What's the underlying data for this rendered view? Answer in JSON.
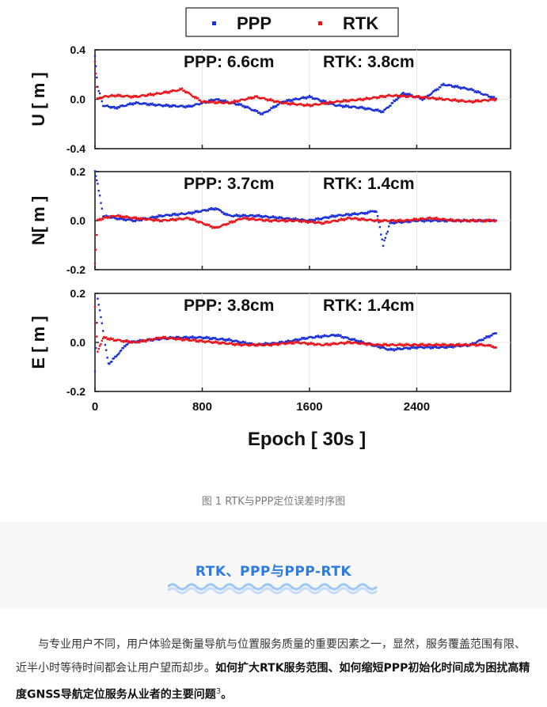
{
  "figure": {
    "legend": [
      {
        "label": "PPP",
        "color": "#1a2fd6"
      },
      {
        "label": "RTK",
        "color": "#e8141c"
      }
    ]
  },
  "chart_data": [
    {
      "type": "scatter",
      "ylabel": "U [ m ]",
      "ylim": [
        -0.4,
        0.4
      ],
      "yticks": [
        "0.4",
        "0.0",
        "-0.4"
      ],
      "annotation_ppp": "PPP: 6.6cm",
      "annotation_rtk": "RTK: 3.8cm",
      "series": [
        {
          "name": "PPP",
          "x": [
            0,
            20,
            60,
            150,
            300,
            500,
            700,
            900,
            1100,
            1250,
            1400,
            1600,
            1800,
            2000,
            2150,
            2300,
            2450,
            2600,
            2800,
            3000
          ],
          "y": [
            0.35,
            0.1,
            -0.05,
            -0.07,
            -0.03,
            -0.05,
            -0.06,
            0.0,
            -0.05,
            -0.12,
            -0.02,
            0.02,
            -0.05,
            -0.07,
            -0.1,
            0.05,
            0.0,
            0.12,
            0.08,
            0.0
          ]
        },
        {
          "name": "RTK",
          "x": [
            0,
            20,
            60,
            150,
            300,
            500,
            650,
            800,
            1000,
            1200,
            1400,
            1600,
            1800,
            2000,
            2200,
            2400,
            2600,
            2800,
            3000
          ],
          "y": [
            0.3,
            0.0,
            0.02,
            0.03,
            0.02,
            0.05,
            0.08,
            -0.02,
            -0.03,
            0.02,
            -0.03,
            -0.05,
            -0.02,
            0.0,
            0.03,
            0.02,
            0.0,
            -0.02,
            0.0
          ]
        }
      ]
    },
    {
      "type": "scatter",
      "ylabel": "N[ m ]",
      "ylim": [
        -0.2,
        0.2
      ],
      "yticks": [
        "0.2",
        "0.0",
        "-0.2"
      ],
      "annotation_ppp": "PPP: 3.7cm",
      "annotation_rtk": "RTK: 1.4cm",
      "series": [
        {
          "name": "PPP",
          "x": [
            0,
            20,
            60,
            150,
            300,
            500,
            700,
            900,
            1000,
            1200,
            1400,
            1600,
            1800,
            2000,
            2100,
            2150,
            2200,
            2400,
            2600,
            2800,
            3000
          ],
          "y": [
            0.2,
            0.15,
            0.02,
            0.01,
            0.0,
            0.02,
            0.03,
            0.05,
            0.02,
            0.02,
            0.01,
            0.0,
            0.02,
            0.03,
            0.04,
            -0.1,
            -0.01,
            0.0,
            0.0,
            0.0,
            0.0
          ]
        },
        {
          "name": "RTK",
          "x": [
            0,
            20,
            60,
            150,
            300,
            500,
            700,
            900,
            1100,
            1300,
            1500,
            1700,
            1900,
            2100,
            2300,
            2500,
            2700,
            2900,
            3000
          ],
          "y": [
            -0.18,
            0.0,
            0.01,
            0.02,
            0.01,
            0.0,
            0.01,
            -0.03,
            0.01,
            0.0,
            0.0,
            -0.01,
            0.01,
            0.0,
            0.0,
            0.01,
            0.0,
            0.0,
            0.0
          ]
        }
      ]
    },
    {
      "type": "scatter",
      "ylabel": "E [ m ]",
      "ylim": [
        -0.2,
        0.2
      ],
      "yticks": [
        "0.2",
        "0.0",
        "-0.2"
      ],
      "xticks": [
        "0",
        "800",
        "1600",
        "2400"
      ],
      "xlabel": "Epoch [ 30s ]",
      "annotation_ppp": "PPP: 3.8cm",
      "annotation_rtk": "RTK: 1.4cm",
      "series": [
        {
          "name": "PPP",
          "x": [
            0,
            20,
            60,
            100,
            150,
            250,
            400,
            600,
            800,
            1000,
            1200,
            1400,
            1600,
            1800,
            2000,
            2200,
            2400,
            2600,
            2800,
            3000
          ],
          "y": [
            -0.12,
            0.18,
            0.05,
            -0.09,
            -0.06,
            0.0,
            0.01,
            0.02,
            0.02,
            0.01,
            -0.01,
            0.0,
            0.02,
            0.03,
            0.0,
            -0.03,
            -0.02,
            -0.02,
            -0.01,
            0.04
          ]
        },
        {
          "name": "RTK",
          "x": [
            0,
            20,
            60,
            150,
            300,
            500,
            700,
            900,
            1100,
            1300,
            1500,
            1700,
            1900,
            2100,
            2300,
            2500,
            2700,
            2900,
            3000
          ],
          "y": [
            0.14,
            -0.04,
            0.02,
            0.01,
            0.0,
            0.02,
            0.01,
            0.0,
            -0.01,
            -0.01,
            0.0,
            -0.01,
            0.0,
            -0.01,
            -0.01,
            -0.01,
            -0.01,
            -0.01,
            -0.02
          ]
        }
      ]
    }
  ],
  "caption": "图 1 RTK与PPP定位误差时序图",
  "section": {
    "title": "RTK、PPP与PPP-RTK"
  },
  "paragraph": {
    "text": "与专业用户不同，用户体验是衡量导航与位置服务质量的重要因素之一，显然，服务覆盖范围有限、近半小时等待时间都会让用户望而却步。",
    "bold": "如何扩大RTK服务范围、如何缩短PPP初始化时间成为困扰高精度GNSS导航定位服务从业者的主要问题",
    "sup": "3",
    "end": "。"
  }
}
